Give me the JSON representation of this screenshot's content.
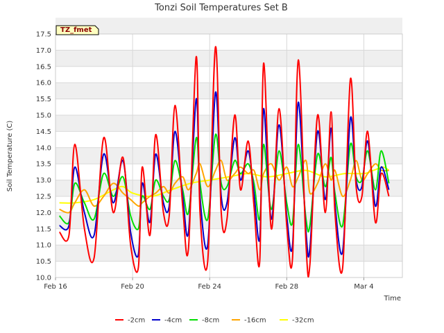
{
  "chart_data": {
    "type": "line",
    "title": "Tonzi Soil Temperatures Set B",
    "xlabel": "Time",
    "ylabel": "Soil Temperature (C)",
    "site_tag": "TZ_fmet",
    "x_range_days": [
      0,
      18
    ],
    "x_ticks": [
      {
        "day": 0,
        "label": "Feb 16"
      },
      {
        "day": 4,
        "label": "Feb 20"
      },
      {
        "day": 8,
        "label": "Feb 24"
      },
      {
        "day": 12,
        "label": "Feb 28"
      },
      {
        "day": 16,
        "label": "Mar 4"
      }
    ],
    "ylim": [
      10.0,
      17.5
    ],
    "y_ticks": [
      "10.0",
      "10.5",
      "11.0",
      "11.5",
      "12.0",
      "12.5",
      "13.0",
      "13.5",
      "14.0",
      "14.5",
      "15.0",
      "15.5",
      "16.0",
      "16.5",
      "17.0",
      "17.5"
    ],
    "grid": true,
    "legend_position": "bottom",
    "series": [
      {
        "name": "-2cm",
        "color": "#ff0000",
        "x": [
          0.2,
          0.7,
          1.0,
          1.5,
          2.0,
          2.5,
          3.0,
          3.5,
          3.9,
          4.3,
          4.5,
          4.9,
          5.2,
          5.6,
          5.9,
          6.2,
          6.6,
          6.9,
          7.3,
          7.5,
          7.9,
          8.3,
          8.6,
          8.9,
          9.3,
          9.6,
          10.0,
          10.3,
          10.6,
          10.8,
          11.2,
          11.6,
          12.0,
          12.3,
          12.6,
          13.0,
          13.2,
          13.6,
          14.0,
          14.3,
          14.5,
          14.9,
          15.3,
          15.6,
          15.9,
          16.2,
          16.6,
          16.9,
          17.3
        ],
        "values": [
          11.4,
          11.3,
          14.1,
          11.5,
          10.6,
          14.3,
          12.0,
          13.7,
          11.0,
          10.3,
          13.4,
          11.3,
          14.4,
          12.0,
          11.9,
          15.3,
          12.2,
          10.9,
          16.8,
          12.0,
          10.5,
          17.1,
          12.0,
          11.8,
          15.0,
          12.7,
          14.2,
          12.2,
          10.5,
          16.6,
          11.5,
          15.2,
          11.6,
          10.6,
          16.7,
          11.0,
          10.4,
          15.0,
          12.0,
          15.1,
          12.0,
          10.3,
          16.1,
          12.8,
          12.5,
          14.5,
          11.7,
          13.2,
          12.5
        ]
      },
      {
        "name": "-4cm",
        "color": "#0000cc",
        "x": [
          0.2,
          0.7,
          1.0,
          1.5,
          2.0,
          2.5,
          3.0,
          3.5,
          3.9,
          4.3,
          4.5,
          4.9,
          5.2,
          5.6,
          5.9,
          6.2,
          6.6,
          6.9,
          7.3,
          7.5,
          7.9,
          8.3,
          8.6,
          8.9,
          9.3,
          9.6,
          10.0,
          10.3,
          10.6,
          10.8,
          11.2,
          11.6,
          12.0,
          12.3,
          12.6,
          13.0,
          13.2,
          13.6,
          14.0,
          14.3,
          14.5,
          14.9,
          15.3,
          15.6,
          15.9,
          16.2,
          16.6,
          16.9,
          17.3
        ],
        "values": [
          11.6,
          11.6,
          13.4,
          12.0,
          11.3,
          13.8,
          12.3,
          13.6,
          11.4,
          10.7,
          12.9,
          11.7,
          13.8,
          12.3,
          12.2,
          14.5,
          12.5,
          11.4,
          15.5,
          12.5,
          11.0,
          15.7,
          12.5,
          12.3,
          14.3,
          13.0,
          13.9,
          12.6,
          11.2,
          15.2,
          11.8,
          14.7,
          11.9,
          11.0,
          15.4,
          11.4,
          10.9,
          14.5,
          12.4,
          14.6,
          12.3,
          10.8,
          14.9,
          13.0,
          12.8,
          14.2,
          12.2,
          13.4,
          12.7
        ]
      },
      {
        "name": "-8cm",
        "color": "#00dd00",
        "x": [
          0.2,
          0.7,
          1.0,
          1.5,
          2.0,
          2.5,
          3.0,
          3.5,
          3.9,
          4.3,
          4.5,
          4.9,
          5.2,
          5.6,
          5.9,
          6.2,
          6.6,
          6.9,
          7.3,
          7.5,
          7.9,
          8.3,
          8.6,
          8.9,
          9.3,
          9.6,
          10.0,
          10.3,
          10.6,
          10.8,
          11.2,
          11.6,
          12.0,
          12.3,
          12.6,
          13.0,
          13.2,
          13.6,
          14.0,
          14.3,
          14.5,
          14.9,
          15.3,
          15.6,
          15.9,
          16.2,
          16.6,
          16.9,
          17.3
        ],
        "values": [
          11.9,
          11.7,
          12.9,
          12.3,
          11.8,
          13.2,
          12.5,
          13.1,
          11.9,
          11.5,
          12.5,
          12.1,
          13.0,
          12.5,
          12.4,
          13.6,
          12.7,
          12.0,
          14.3,
          12.9,
          11.8,
          14.4,
          12.9,
          12.8,
          13.6,
          13.2,
          13.5,
          12.9,
          11.8,
          14.1,
          12.1,
          13.9,
          12.3,
          11.7,
          14.1,
          11.8,
          11.6,
          13.8,
          12.8,
          13.7,
          12.6,
          11.6,
          14.1,
          13.1,
          13.0,
          13.9,
          12.7,
          13.9,
          12.9
        ]
      },
      {
        "name": "-16cm",
        "color": "#ffa500",
        "x": [
          0.2,
          0.7,
          1.0,
          1.5,
          2.0,
          2.5,
          3.0,
          3.5,
          3.9,
          4.3,
          4.5,
          4.9,
          5.2,
          5.6,
          5.9,
          6.2,
          6.6,
          6.9,
          7.3,
          7.5,
          7.9,
          8.3,
          8.6,
          8.9,
          9.3,
          9.6,
          10.0,
          10.3,
          10.6,
          10.8,
          11.2,
          11.6,
          12.0,
          12.3,
          12.6,
          13.0,
          13.2,
          13.6,
          14.0,
          14.3,
          14.5,
          14.9,
          15.3,
          15.6,
          15.9,
          16.2,
          16.6,
          16.9,
          17.3
        ],
        "values": [
          12.1,
          12.0,
          12.3,
          12.7,
          12.2,
          12.5,
          12.9,
          12.6,
          12.4,
          12.2,
          12.3,
          12.5,
          12.6,
          12.8,
          12.6,
          12.9,
          13.1,
          12.7,
          13.2,
          13.5,
          12.8,
          13.3,
          13.6,
          13.0,
          13.2,
          13.4,
          13.2,
          13.3,
          12.7,
          13.2,
          13.5,
          13.0,
          13.4,
          12.8,
          13.1,
          13.6,
          12.6,
          12.9,
          13.5,
          13.0,
          13.3,
          12.5,
          13.0,
          13.6,
          13.0,
          13.2,
          13.5,
          13.3,
          13.3
        ]
      },
      {
        "name": "-32cm",
        "color": "#ffff00",
        "x": [
          0.2,
          1.0,
          2.0,
          3.0,
          3.5,
          4.0,
          5.0,
          6.0,
          7.0,
          8.0,
          9.0,
          10.0,
          11.0,
          12.0,
          13.0,
          14.0,
          15.0,
          16.0,
          16.5,
          17.0,
          17.3
        ],
        "values": [
          12.3,
          12.3,
          12.4,
          12.7,
          12.8,
          12.6,
          12.5,
          12.7,
          12.9,
          13.0,
          13.1,
          13.2,
          13.1,
          13.2,
          13.3,
          13.1,
          13.2,
          13.2,
          13.3,
          13.4,
          13.3
        ]
      }
    ]
  }
}
